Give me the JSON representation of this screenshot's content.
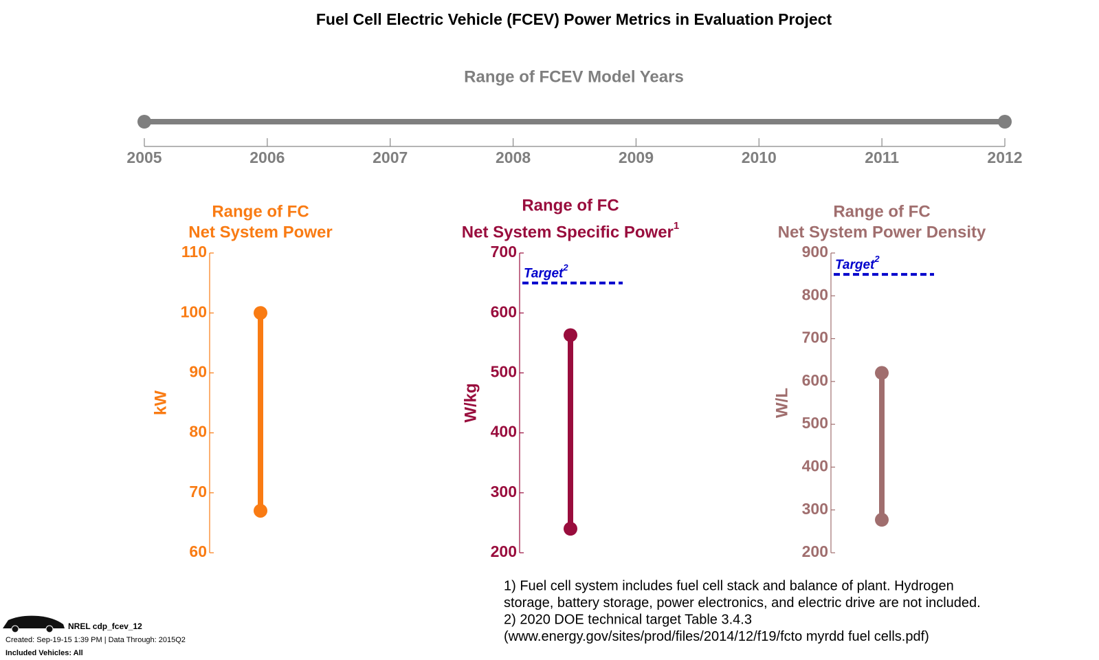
{
  "title": "Fuel Cell Electric Vehicle (FCEV) Power Metrics in Evaluation Project",
  "chart_data": [
    {
      "type": "range",
      "orientation": "horizontal",
      "title": [
        "Range of FCEV Model Years"
      ],
      "values": [
        2005,
        2012
      ],
      "color": "#7f7f7f",
      "xlim": [
        2005,
        2012
      ],
      "xticks": [
        2005,
        2006,
        2007,
        2008,
        2009,
        2010,
        2011,
        2012
      ]
    },
    {
      "type": "range",
      "orientation": "vertical",
      "title": [
        "Range of FC",
        "Net System Power"
      ],
      "ylabel": "kW",
      "values": [
        67,
        100
      ],
      "color": "#f97b13",
      "ylim": [
        60,
        110
      ],
      "yticks": [
        60,
        70,
        80,
        90,
        100,
        110
      ]
    },
    {
      "type": "range",
      "orientation": "vertical",
      "title": [
        "Range of FC",
        "Net System Specific Power"
      ],
      "title_note": "1",
      "ylabel": "W/kg",
      "values": [
        240,
        563
      ],
      "color": "#990d3d",
      "ylim": [
        200,
        700
      ],
      "yticks": [
        200,
        300,
        400,
        500,
        600,
        700
      ],
      "target": {
        "value": 650,
        "label": "Target",
        "note": "2",
        "color": "#0000cc"
      }
    },
    {
      "type": "range",
      "orientation": "vertical",
      "title": [
        "Range of FC",
        "Net System Power Density"
      ],
      "ylabel": "W/L",
      "values": [
        277,
        620
      ],
      "color": "#a06e6e",
      "ylim": [
        200,
        900
      ],
      "yticks": [
        200,
        300,
        400,
        500,
        600,
        700,
        800,
        900
      ],
      "target": {
        "value": 850,
        "label": "Target",
        "note": "2",
        "color": "#0000cc"
      }
    }
  ],
  "footnotes": [
    "1) Fuel cell system includes fuel cell stack and balance of plant. Hydrogen",
    "storage, battery storage, power electronics, and electric drive are not included.",
    "2) 2020 DOE technical target Table 3.4.3",
    "(www.energy.gov/sites/prod/files/2014/12/f19/fcto myrdd fuel cells.pdf)"
  ],
  "footer": {
    "id": "NREL cdp_fcev_12",
    "created": "Created: Sep-19-15  1:39 PM | Data Through: 2015Q2",
    "vehicles": "Included Vehicles: All"
  }
}
